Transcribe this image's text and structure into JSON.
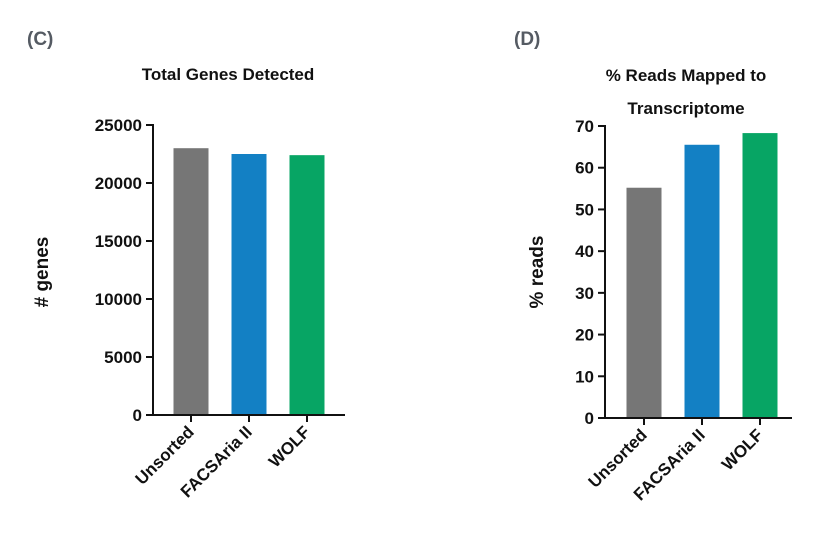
{
  "chart_data": [
    {
      "type": "bar",
      "panel": "(C)",
      "title": "Total Genes Detected",
      "title_lines": [
        "Total Genes Detected"
      ],
      "xlabel": "",
      "ylabel": "# genes",
      "ylim": [
        0,
        25000
      ],
      "yticks": [
        0,
        5000,
        10000,
        15000,
        20000,
        25000
      ],
      "ytick_labels": [
        "0",
        "5000",
        "10000",
        "15000",
        "20000",
        "25000"
      ],
      "categories": [
        "Unsorted",
        "FACSAria II",
        "WOLF"
      ],
      "values": [
        23000,
        22500,
        22400
      ],
      "colors": [
        "#767676",
        "#1380c4",
        "#07a564"
      ],
      "grid": false,
      "legend": "none"
    },
    {
      "type": "bar",
      "panel": "(D)",
      "title": "% Reads Mapped to Transcriptome",
      "title_lines": [
        "% Reads Mapped to",
        "Transcriptome"
      ],
      "xlabel": "",
      "ylabel": "% reads",
      "ylim": [
        0,
        70
      ],
      "yticks": [
        0,
        10,
        20,
        30,
        40,
        50,
        60,
        70
      ],
      "ytick_labels": [
        "0",
        "10",
        "20",
        "30",
        "40",
        "50",
        "60",
        "70"
      ],
      "categories": [
        "Unsorted",
        "FACSAria II",
        "WOLF"
      ],
      "values": [
        55.2,
        65.5,
        68.3
      ],
      "colors": [
        "#767676",
        "#1380c4",
        "#07a564"
      ],
      "grid": false,
      "legend": "none"
    }
  ]
}
